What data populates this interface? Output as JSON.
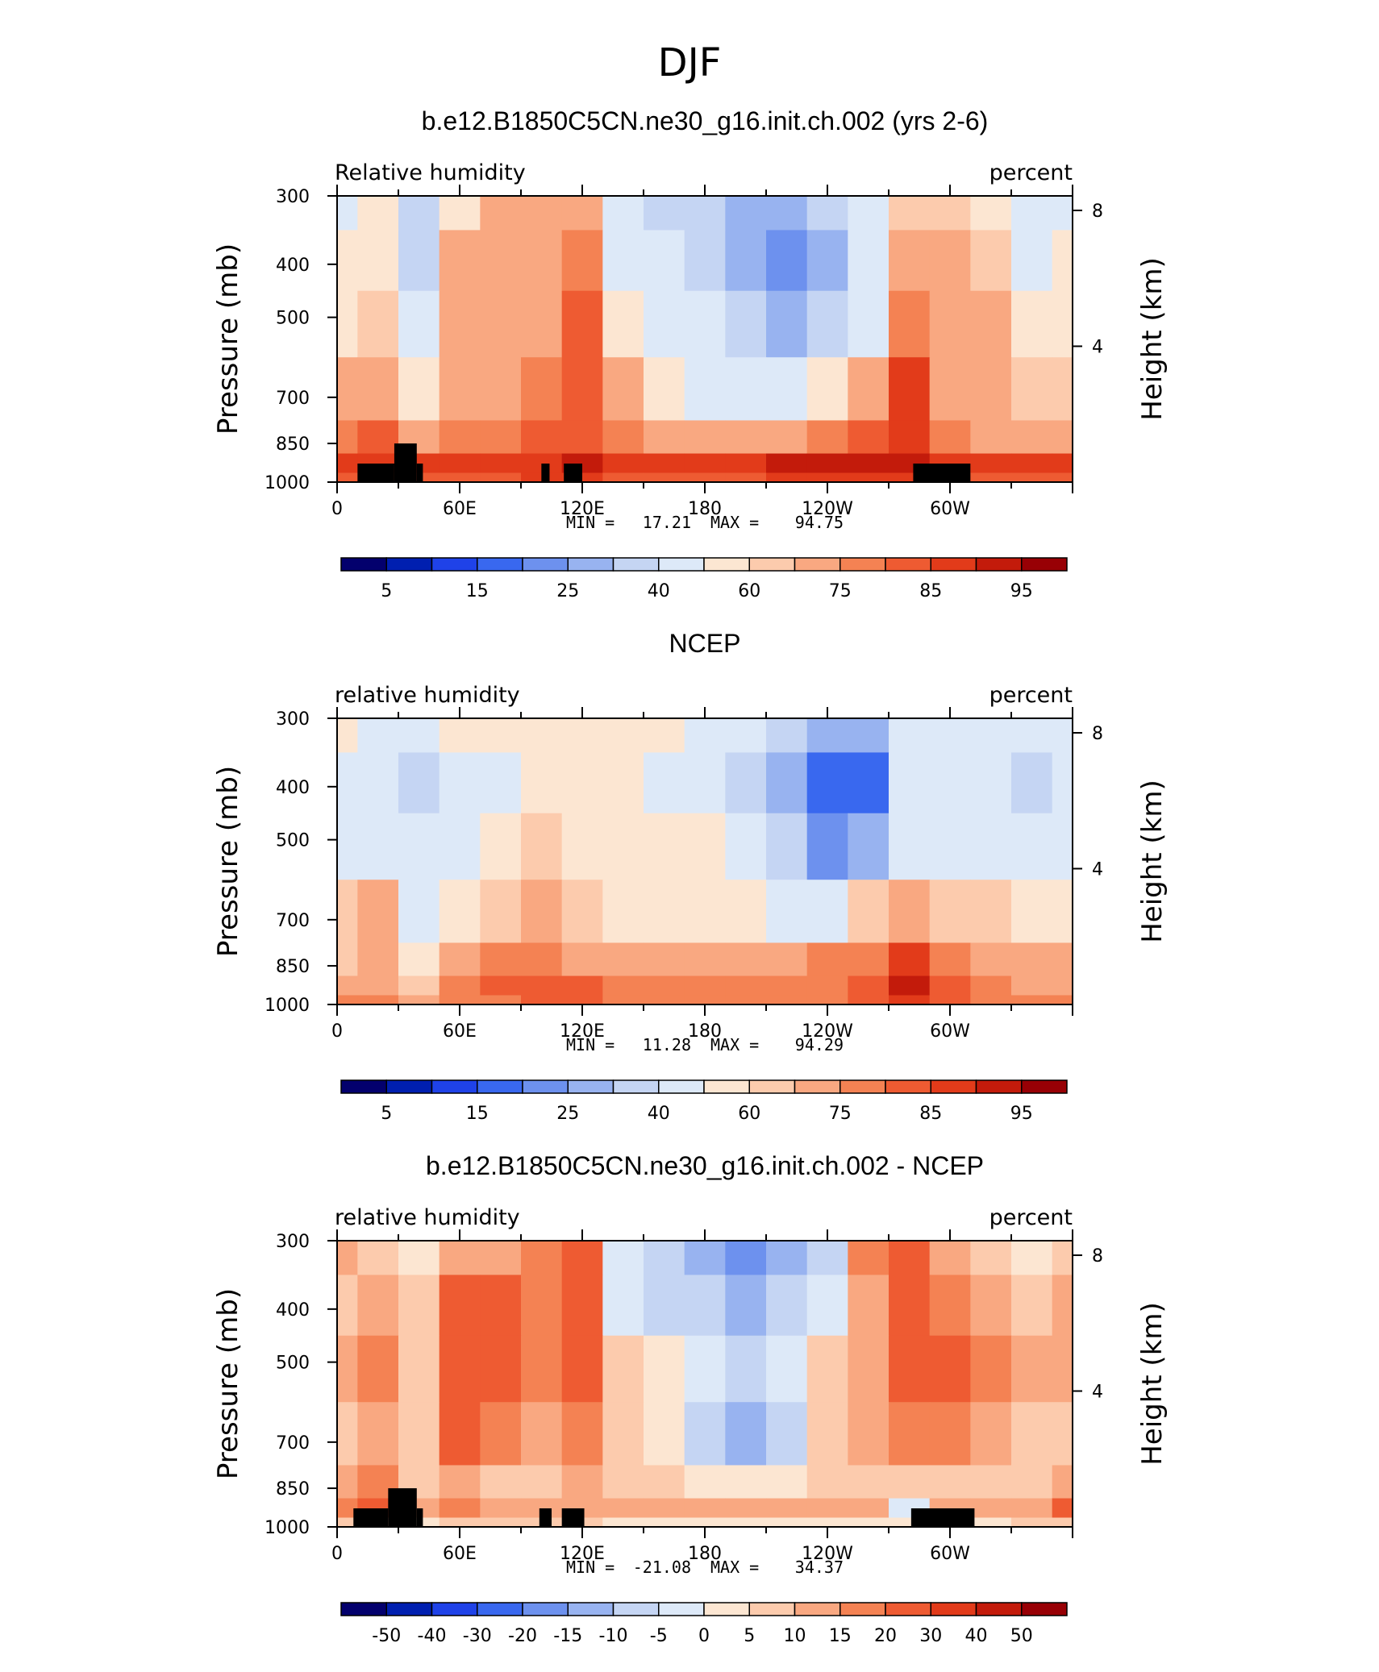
{
  "figure": {
    "title": "DJF"
  },
  "chart_data": [
    {
      "type": "heatmap",
      "title": "b.e12.B1850C5CN.ne30_g16.init.ch.002 (yrs 2-6)",
      "left_label": "Relative humidity",
      "right_label": "percent",
      "ylabel": "Pressure (mb)",
      "ylabel_right": "Height (km)",
      "x_ticks": [
        {
          "lon": 0,
          "label": "0"
        },
        {
          "lon": 60,
          "label": "60E"
        },
        {
          "lon": 120,
          "label": "120E"
        },
        {
          "lon": 180,
          "label": "180"
        },
        {
          "lon": 240,
          "label": "120W"
        },
        {
          "lon": 300,
          "label": "60W"
        }
      ],
      "y_ticks": [
        {
          "p": 300,
          "label": "300"
        },
        {
          "p": 400,
          "label": "400"
        },
        {
          "p": 500,
          "label": "500"
        },
        {
          "p": 700,
          "label": "700"
        },
        {
          "p": 850,
          "label": "850"
        },
        {
          "p": 1000,
          "label": "1000"
        }
      ],
      "height_ticks": [
        {
          "km": 8,
          "label": "8"
        },
        {
          "km": 4,
          "label": "4"
        }
      ],
      "xlim": [
        0,
        360
      ],
      "ylim": [
        1000,
        300
      ],
      "y_scale": "log",
      "min_label": "MIN =",
      "min": "17.21",
      "max_label": "MAX =",
      "max": "94.75",
      "lat": [
        0,
        20,
        40,
        60,
        80,
        100,
        120,
        140,
        160,
        180,
        200,
        220,
        240,
        260,
        280,
        300,
        320,
        340,
        360
      ],
      "levels": [
        300,
        400,
        500,
        700,
        850,
        925,
        1000
      ],
      "values": [
        [
          45,
          50,
          35,
          55,
          65,
          70,
          65,
          40,
          35,
          30,
          25,
          25,
          30,
          45,
          60,
          60,
          55,
          40,
          45
        ],
        [
          50,
          55,
          35,
          65,
          65,
          70,
          75,
          45,
          40,
          35,
          25,
          20,
          25,
          40,
          70,
          65,
          60,
          45,
          50
        ],
        [
          55,
          60,
          40,
          65,
          70,
          72,
          80,
          55,
          45,
          40,
          30,
          25,
          35,
          45,
          75,
          70,
          65,
          55,
          55
        ],
        [
          65,
          72,
          55,
          65,
          70,
          75,
          80,
          65,
          55,
          45,
          40,
          45,
          55,
          70,
          85,
          72,
          65,
          60,
          60
        ],
        [
          75,
          80,
          70,
          75,
          78,
          80,
          82,
          75,
          70,
          65,
          65,
          70,
          75,
          80,
          88,
          78,
          72,
          70,
          70
        ],
        [
          85,
          88,
          85,
          88,
          88,
          88,
          90,
          88,
          88,
          88,
          89,
          90,
          90,
          90,
          90,
          88,
          86,
          87,
          86
        ],
        [
          82,
          84,
          80,
          83,
          83,
          85,
          86,
          84,
          84,
          84,
          84,
          85,
          85,
          86,
          87,
          85,
          83,
          84,
          82
        ]
      ],
      "terrain": [
        {
          "lon_start": 10,
          "lon_end": 28,
          "top_p": 925
        },
        {
          "lon_start": 28,
          "lon_end": 39,
          "top_p": 850
        },
        {
          "lon_start": 39,
          "lon_end": 42,
          "top_p": 925
        },
        {
          "lon_start": 100,
          "lon_end": 104,
          "top_p": 925
        },
        {
          "lon_start": 111,
          "lon_end": 120,
          "top_p": 925
        },
        {
          "lon_start": 282,
          "lon_end": 310,
          "top_p": 925
        }
      ],
      "colorbar": {
        "colors": [
          "#03006d",
          "#001fb0",
          "#1f42e8",
          "#3968ef",
          "#6d91ee",
          "#98b3f0",
          "#c5d5f3",
          "#dde9f8",
          "#fce6d2",
          "#fccbad",
          "#f9a881",
          "#f48253",
          "#ee5b32",
          "#e23b1a",
          "#c31b0b",
          "#980005"
        ],
        "bounds": [
          0,
          5,
          10,
          15,
          20,
          25,
          30,
          40,
          50,
          60,
          65,
          75,
          80,
          85,
          90,
          95,
          100
        ],
        "tick_labels": [
          "5",
          "15",
          "25",
          "40",
          "60",
          "75",
          "85",
          "95"
        ]
      }
    },
    {
      "type": "heatmap",
      "title": "NCEP",
      "left_label": "relative humidity",
      "right_label": "percent",
      "ylabel": "Pressure (mb)",
      "ylabel_right": "Height (km)",
      "x_ticks": [
        {
          "lon": 0,
          "label": "0"
        },
        {
          "lon": 60,
          "label": "60E"
        },
        {
          "lon": 120,
          "label": "120E"
        },
        {
          "lon": 180,
          "label": "180"
        },
        {
          "lon": 240,
          "label": "120W"
        },
        {
          "lon": 300,
          "label": "60W"
        }
      ],
      "y_ticks": [
        {
          "p": 300,
          "label": "300"
        },
        {
          "p": 400,
          "label": "400"
        },
        {
          "p": 500,
          "label": "500"
        },
        {
          "p": 700,
          "label": "700"
        },
        {
          "p": 850,
          "label": "850"
        },
        {
          "p": 1000,
          "label": "1000"
        }
      ],
      "height_ticks": [
        {
          "km": 8,
          "label": "8"
        },
        {
          "km": 4,
          "label": "4"
        }
      ],
      "xlim": [
        0,
        360
      ],
      "ylim": [
        1000,
        300
      ],
      "y_scale": "log",
      "min_label": "MIN =",
      "min": "11.28",
      "max_label": "MAX =",
      "max": "94.29",
      "lat": [
        0,
        20,
        40,
        60,
        80,
        100,
        120,
        140,
        160,
        180,
        200,
        220,
        240,
        260,
        280,
        300,
        320,
        340,
        360
      ],
      "levels": [
        300,
        400,
        500,
        700,
        850,
        925,
        1000
      ],
      "values": [
        [
          50,
          45,
          40,
          55,
          55,
          55,
          55,
          55,
          50,
          45,
          40,
          35,
          25,
          25,
          40,
          40,
          45,
          40,
          45
        ],
        [
          45,
          45,
          35,
          45,
          45,
          55,
          50,
          50,
          45,
          40,
          35,
          25,
          15,
          15,
          40,
          40,
          45,
          35,
          40
        ],
        [
          45,
          40,
          40,
          45,
          50,
          60,
          55,
          55,
          55,
          50,
          40,
          30,
          20,
          25,
          45,
          45,
          45,
          40,
          40
        ],
        [
          62,
          65,
          45,
          50,
          60,
          65,
          60,
          58,
          55,
          55,
          50,
          45,
          45,
          60,
          70,
          60,
          60,
          55,
          55
        ],
        [
          62,
          68,
          55,
          65,
          75,
          75,
          70,
          65,
          65,
          65,
          65,
          70,
          75,
          78,
          85,
          75,
          70,
          65,
          65
        ],
        [
          70,
          72,
          60,
          75,
          80,
          80,
          80,
          75,
          75,
          75,
          75,
          75,
          78,
          80,
          90,
          82,
          75,
          70,
          72
        ],
        [
          75,
          78,
          65,
          75,
          78,
          80,
          82,
          78,
          78,
          76,
          76,
          78,
          78,
          80,
          86,
          80,
          78,
          76,
          75
        ]
      ],
      "terrain": [],
      "colorbar": {
        "colors": [
          "#03006d",
          "#001fb0",
          "#1f42e8",
          "#3968ef",
          "#6d91ee",
          "#98b3f0",
          "#c5d5f3",
          "#dde9f8",
          "#fce6d2",
          "#fccbad",
          "#f9a881",
          "#f48253",
          "#ee5b32",
          "#e23b1a",
          "#c31b0b",
          "#980005"
        ],
        "bounds": [
          0,
          5,
          10,
          15,
          20,
          25,
          30,
          40,
          50,
          60,
          65,
          75,
          80,
          85,
          90,
          95,
          100
        ],
        "tick_labels": [
          "5",
          "15",
          "25",
          "40",
          "60",
          "75",
          "85",
          "95"
        ]
      }
    },
    {
      "type": "heatmap",
      "title": "b.e12.B1850C5CN.ne30_g16.init.ch.002 - NCEP",
      "left_label": "relative humidity",
      "right_label": "percent",
      "ylabel": "Pressure (mb)",
      "ylabel_right": "Height (km)",
      "x_ticks": [
        {
          "lon": 0,
          "label": "0"
        },
        {
          "lon": 60,
          "label": "60E"
        },
        {
          "lon": 120,
          "label": "120E"
        },
        {
          "lon": 180,
          "label": "180"
        },
        {
          "lon": 240,
          "label": "120W"
        },
        {
          "lon": 300,
          "label": "60W"
        }
      ],
      "y_ticks": [
        {
          "p": 300,
          "label": "300"
        },
        {
          "p": 400,
          "label": "400"
        },
        {
          "p": 500,
          "label": "500"
        },
        {
          "p": 700,
          "label": "700"
        },
        {
          "p": 850,
          "label": "850"
        },
        {
          "p": 1000,
          "label": "1000"
        }
      ],
      "height_ticks": [
        {
          "km": 8,
          "label": "8"
        },
        {
          "km": 4,
          "label": "4"
        }
      ],
      "xlim": [
        0,
        360
      ],
      "ylim": [
        1000,
        300
      ],
      "y_scale": "log",
      "min_label": "MIN =",
      "min": "-21.08",
      "max_label": "MAX =",
      "max": "34.37",
      "lat": [
        0,
        20,
        40,
        60,
        80,
        100,
        120,
        140,
        160,
        180,
        200,
        220,
        240,
        260,
        280,
        300,
        320,
        340,
        360
      ],
      "levels": [
        300,
        400,
        500,
        700,
        850,
        925,
        1000
      ],
      "values": [
        [
          10,
          8,
          3,
          12,
          10,
          15,
          20,
          -5,
          -10,
          -15,
          -20,
          -15,
          -10,
          15,
          20,
          10,
          8,
          3,
          5
        ],
        [
          8,
          12,
          5,
          22,
          20,
          15,
          22,
          -3,
          -8,
          -10,
          -12,
          -10,
          -5,
          12,
          25,
          18,
          12,
          8,
          10
        ],
        [
          12,
          18,
          8,
          25,
          22,
          15,
          25,
          5,
          0,
          -5,
          -8,
          -5,
          5,
          12,
          25,
          22,
          15,
          10,
          12
        ],
        [
          8,
          12,
          5,
          20,
          15,
          10,
          18,
          8,
          2,
          -8,
          -12,
          -8,
          5,
          10,
          15,
          15,
          10,
          8,
          8
        ],
        [
          12,
          15,
          8,
          12,
          8,
          8,
          12,
          8,
          5,
          3,
          3,
          3,
          5,
          8,
          5,
          8,
          5,
          8,
          12
        ],
        [
          18,
          20,
          12,
          15,
          12,
          12,
          14,
          10,
          10,
          10,
          12,
          12,
          12,
          12,
          -5,
          12,
          10,
          12,
          20
        ],
        [
          6,
          8,
          4,
          6,
          6,
          6,
          6,
          4,
          2,
          2,
          4,
          4,
          4,
          4,
          2,
          4,
          4,
          6,
          8
        ]
      ],
      "terrain": [
        {
          "lon_start": 8,
          "lon_end": 25,
          "top_p": 925
        },
        {
          "lon_start": 25,
          "lon_end": 39,
          "top_p": 850
        },
        {
          "lon_start": 39,
          "lon_end": 42,
          "top_p": 925
        },
        {
          "lon_start": 99,
          "lon_end": 105,
          "top_p": 925
        },
        {
          "lon_start": 110,
          "lon_end": 121,
          "top_p": 925
        },
        {
          "lon_start": 281,
          "lon_end": 312,
          "top_p": 925
        }
      ],
      "colorbar": {
        "colors": [
          "#03006d",
          "#001fb0",
          "#1f42e8",
          "#3968ef",
          "#6d91ee",
          "#98b3f0",
          "#c5d5f3",
          "#dde9f8",
          "#fce6d2",
          "#fccbad",
          "#f9a881",
          "#f48253",
          "#ee5b32",
          "#e23b1a",
          "#c31b0b",
          "#980005"
        ],
        "bounds": [
          -60,
          -50,
          -40,
          -30,
          -20,
          -15,
          -10,
          -5,
          0,
          5,
          10,
          15,
          20,
          30,
          40,
          50,
          60
        ],
        "tick_labels": [
          "-50",
          "-40",
          "-30",
          "-20",
          "-15",
          "-10",
          "-5",
          "0",
          "5",
          "10",
          "15",
          "20",
          "30",
          "40",
          "50"
        ]
      }
    }
  ]
}
